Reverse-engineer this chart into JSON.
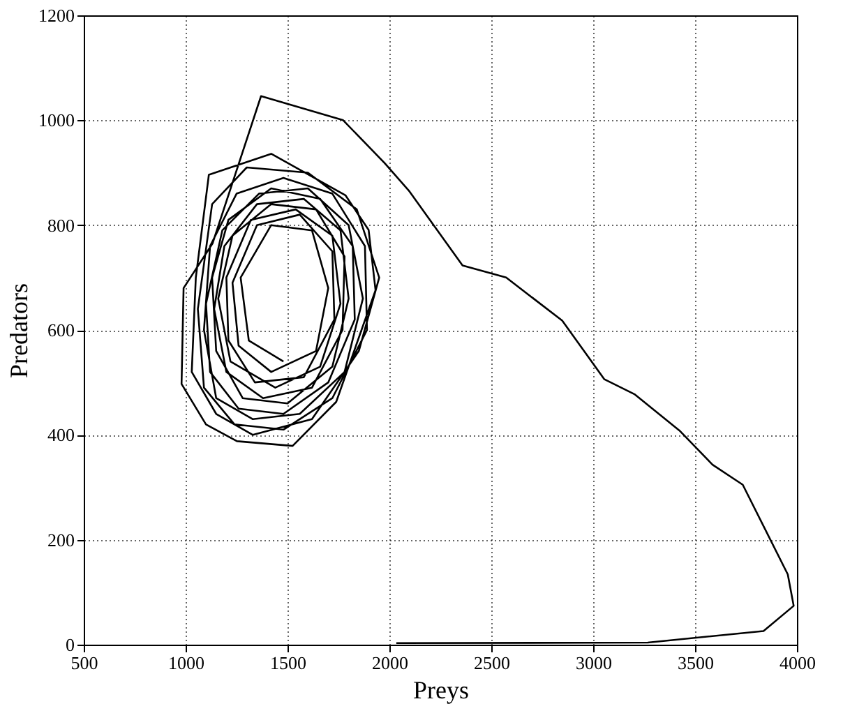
{
  "chart_data": {
    "type": "line",
    "xlabel": "Preys",
    "ylabel": "Predators",
    "xlim": [
      500,
      4000
    ],
    "xticks": [
      500,
      1000,
      1500,
      2000,
      2500,
      3000,
      3500,
      4000
    ],
    "ylim": [
      0,
      1200
    ],
    "yticks": [
      0,
      200,
      400,
      600,
      800,
      1000,
      1200
    ],
    "grid": true,
    "line_style": "solid",
    "marker": "none",
    "legend": false,
    "series": [
      {
        "color": "#000000",
        "x": [
          2034,
          3268,
          3836,
          3984,
          3955,
          3734,
          3586,
          3427,
          3205,
          3055,
          2848,
          2573,
          2359,
          2095,
          1977,
          1773,
          1370,
          1132,
          990,
          980,
          1100,
          1252,
          1525,
          1739,
          1932,
          1898,
          1784,
          1420,
          1114,
          1050,
          1030,
          1150,
          1330,
          1620,
          1850,
          1950,
          1840,
          1600,
          1300,
          1130,
          1060,
          1090,
          1240,
          1480,
          1720,
          1890,
          1880,
          1720,
          1480,
          1250,
          1120,
          1090,
          1150,
          1330,
          1560,
          1780,
          1870,
          1800,
          1600,
          1360,
          1180,
          1100,
          1120,
          1260,
          1480,
          1700,
          1830,
          1820,
          1660,
          1420,
          1210,
          1130,
          1150,
          1280,
          1500,
          1720,
          1800,
          1760,
          1580,
          1350,
          1190,
          1140,
          1200,
          1380,
          1620,
          1770,
          1780,
          1640,
          1420,
          1230,
          1160,
          1220,
          1440,
          1660,
          1760,
          1720,
          1540,
          1320,
          1200,
          1210,
          1340,
          1580,
          1730,
          1720,
          1560,
          1350,
          1230,
          1260,
          1420,
          1640,
          1700,
          1620,
          1420,
          1270,
          1310,
          1480
        ],
        "values": [
          3,
          4,
          26,
          74,
          134,
          305,
          343,
          407,
          477,
          506,
          618,
          700,
          723,
          866,
          918,
          1000,
          1046,
          765,
          680,
          497,
          420,
          388,
          379,
          463,
          676,
          791,
          857,
          936,
          896,
          700,
          520,
          440,
          400,
          430,
          560,
          700,
          830,
          900,
          910,
          840,
          640,
          490,
          420,
          410,
          470,
          600,
          760,
          860,
          890,
          860,
          760,
          600,
          470,
          430,
          440,
          520,
          660,
          800,
          870,
          860,
          790,
          650,
          520,
          450,
          440,
          500,
          620,
          760,
          850,
          870,
          810,
          700,
          560,
          470,
          460,
          530,
          660,
          790,
          850,
          840,
          760,
          640,
          520,
          470,
          490,
          600,
          740,
          830,
          840,
          780,
          660,
          540,
          490,
          530,
          650,
          780,
          830,
          810,
          700,
          580,
          500,
          510,
          620,
          750,
          820,
          800,
          690,
          570,
          520,
          560,
          680,
          790,
          800,
          700,
          580,
          540
        ]
      }
    ]
  }
}
